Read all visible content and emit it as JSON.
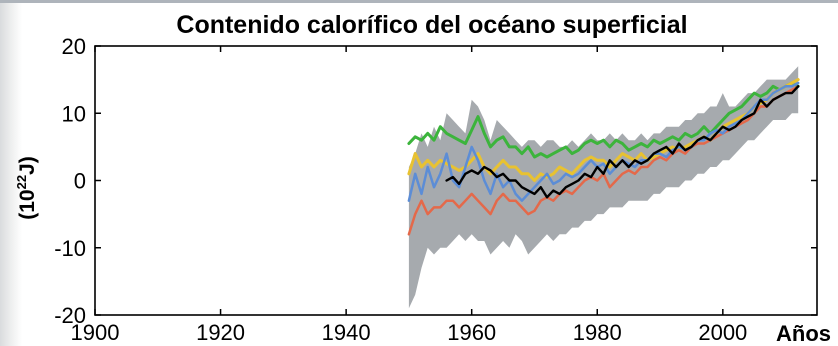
{
  "chart_data": {
    "type": "line",
    "title": "Contenido calorífico del océano superficial",
    "xlabel": "Años",
    "ylabel": "(10²²J)",
    "ylabel_base": "(10",
    "ylabel_exp": "22",
    "ylabel_unit": "J)",
    "xlim": [
      1900,
      2015
    ],
    "ylim": [
      -20,
      20
    ],
    "xticks": [
      1900,
      1920,
      1940,
      1960,
      1980,
      2000
    ],
    "yticks": [
      20,
      10,
      0,
      -10,
      -20
    ],
    "grid": false,
    "legend": "none",
    "uncertainty_band": {
      "color": "#a6aaae",
      "x": [
        1950,
        1951,
        1952,
        1953,
        1954,
        1955,
        1956,
        1957,
        1958,
        1959,
        1960,
        1961,
        1962,
        1963,
        1964,
        1965,
        1966,
        1967,
        1968,
        1969,
        1970,
        1971,
        1972,
        1973,
        1974,
        1975,
        1976,
        1977,
        1978,
        1979,
        1980,
        1981,
        1982,
        1983,
        1984,
        1985,
        1986,
        1987,
        1988,
        1989,
        1990,
        1991,
        1992,
        1993,
        1994,
        1995,
        1996,
        1997,
        1998,
        1999,
        2000,
        2001,
        2002,
        2003,
        2004,
        2005,
        2006,
        2007,
        2008,
        2009,
        2010,
        2011,
        2012
      ],
      "upper": [
        2,
        4,
        7,
        5,
        8,
        6,
        10,
        9,
        8,
        7,
        12,
        11,
        9,
        6,
        9,
        8,
        7,
        6,
        5,
        6,
        6,
        5,
        6,
        6,
        5,
        5,
        6,
        5,
        6,
        7,
        6,
        6,
        7,
        6,
        7,
        6,
        6,
        7,
        6,
        7,
        7,
        8,
        8,
        8,
        9,
        9,
        10,
        10,
        11,
        11,
        13,
        11,
        11,
        12,
        13,
        13,
        14,
        15,
        15,
        15,
        15,
        16,
        17
      ],
      "lower": [
        -19,
        -17,
        -13,
        -10,
        -11,
        -10,
        -10,
        -9,
        -8,
        -9,
        -8,
        -9,
        -9,
        -11,
        -10,
        -9,
        -10,
        -8,
        -9,
        -11,
        -10,
        -9,
        -8,
        -9,
        -8,
        -8,
        -7,
        -7,
        -6,
        -6,
        -5,
        -5,
        -4,
        -4,
        -4,
        -3,
        -3,
        -3,
        -3,
        -2,
        -2,
        -1,
        -1,
        -1,
        0,
        0,
        1,
        1,
        2,
        2,
        3,
        3,
        4,
        5,
        6,
        6,
        7,
        8,
        9,
        9,
        9,
        10,
        10
      ]
    },
    "series": [
      {
        "color": "#3cb43c",
        "x": [
          1950,
          1951,
          1952,
          1953,
          1954,
          1955,
          1956,
          1957,
          1958,
          1959,
          1960,
          1961,
          1962,
          1963,
          1964,
          1965,
          1966,
          1967,
          1968,
          1969,
          1970,
          1971,
          1972,
          1973,
          1974,
          1975,
          1976,
          1977,
          1978,
          1979,
          1980,
          1981,
          1982,
          1983,
          1984,
          1985,
          1986,
          1987,
          1988,
          1989,
          1990,
          1991,
          1992,
          1993,
          1994,
          1995,
          1996,
          1997,
          1998,
          1999,
          2000,
          2001,
          2002,
          2003,
          2004,
          2005,
          2006,
          2007,
          2008,
          2009,
          2010,
          2011,
          2012
        ],
        "values": [
          5.5,
          6.5,
          6,
          7,
          6,
          8,
          7,
          6.5,
          6,
          5.5,
          7.5,
          9.5,
          7,
          5,
          6,
          6.5,
          5,
          5,
          4,
          5,
          3.5,
          4,
          3.5,
          4,
          4.5,
          5,
          4,
          4.5,
          5.5,
          6,
          5.5,
          6,
          5,
          6,
          5.5,
          4.5,
          5,
          5.5,
          5,
          6,
          5.5,
          6,
          6.5,
          6,
          7,
          6.5,
          7,
          8,
          7,
          8,
          9,
          10,
          10.5,
          11,
          12,
          13,
          12.5,
          13,
          14,
          13.5,
          14,
          14.5,
          14
        ]
      },
      {
        "color": "#e8c231",
        "x": [
          1950,
          1951,
          1952,
          1953,
          1954,
          1955,
          1956,
          1957,
          1958,
          1959,
          1960,
          1961,
          1962,
          1963,
          1964,
          1965,
          1966,
          1967,
          1968,
          1969,
          1970,
          1971,
          1972,
          1973,
          1974,
          1975,
          1976,
          1977,
          1978,
          1979,
          1980,
          1981,
          1982,
          1983,
          1984,
          1985,
          1986,
          1987,
          1988,
          1989,
          1990,
          1991,
          1992,
          1993,
          1994,
          1995,
          1996,
          1997,
          1998,
          1999,
          2000,
          2001,
          2002,
          2003,
          2004,
          2005,
          2006,
          2007,
          2008,
          2009,
          2010,
          2011,
          2012
        ],
        "values": [
          1,
          4,
          2,
          3,
          2,
          3,
          2.5,
          2,
          1.5,
          2,
          3,
          4,
          2,
          1,
          2,
          3,
          2,
          2,
          1,
          1,
          0,
          1,
          0.5,
          1,
          2,
          1.5,
          1,
          2,
          3,
          3.5,
          3,
          3,
          2,
          3,
          4,
          3.5,
          3,
          4,
          3,
          3.5,
          4,
          4.5,
          5,
          4.5,
          5,
          5.5,
          6,
          6.5,
          6,
          7,
          8,
          8.5,
          9,
          9.5,
          10,
          11,
          11.5,
          12,
          13,
          13.5,
          14,
          14.5,
          15
        ]
      },
      {
        "color": "#e4694a",
        "x": [
          1950,
          1951,
          1952,
          1953,
          1954,
          1955,
          1956,
          1957,
          1958,
          1959,
          1960,
          1961,
          1962,
          1963,
          1964,
          1965,
          1966,
          1967,
          1968,
          1969,
          1970,
          1971,
          1972,
          1973,
          1974,
          1975,
          1976,
          1977,
          1978,
          1979,
          1980,
          1981,
          1982,
          1983,
          1984,
          1985,
          1986,
          1987,
          1988,
          1989,
          1990,
          1991,
          1992,
          1993,
          1994,
          1995,
          1996,
          1997,
          1998,
          1999,
          2000,
          2001,
          2002,
          2003,
          2004,
          2005,
          2006,
          2007,
          2008,
          2009,
          2010,
          2011,
          2012
        ],
        "values": [
          -8,
          -5,
          -3,
          -5,
          -4,
          -4,
          -3,
          -3,
          -4,
          -3,
          -2,
          -3,
          -4,
          -5,
          -3,
          -2,
          -3,
          -3,
          -4,
          -5,
          -4.5,
          -3,
          -2.5,
          -3,
          -2,
          -1.5,
          -2,
          -1,
          0,
          0.5,
          0,
          1,
          -1,
          0,
          1,
          1.5,
          1,
          2,
          2,
          3,
          3.5,
          3,
          4,
          4.5,
          4,
          5,
          5.5,
          5.5,
          6,
          6.5,
          7,
          7.5,
          8,
          8.5,
          9,
          10,
          11,
          11,
          12,
          12.5,
          13,
          13.5,
          14
        ]
      },
      {
        "color": "#5c8dd6",
        "x": [
          1950,
          1951,
          1952,
          1953,
          1954,
          1955,
          1956,
          1957,
          1958,
          1959,
          1960,
          1961,
          1962,
          1963,
          1964,
          1965,
          1966,
          1967,
          1968,
          1969,
          1970,
          1971,
          1972,
          1973,
          1974,
          1975,
          1976,
          1977,
          1978,
          1979,
          1980,
          1981,
          1982,
          1983,
          1984,
          1985,
          1986,
          1987,
          1988,
          1989,
          1990,
          1991,
          1992,
          1993,
          1994,
          1995,
          1996,
          1997,
          1998,
          1999,
          2000,
          2001,
          2002,
          2003,
          2004,
          2005,
          2006,
          2007,
          2008,
          2009,
          2010,
          2011,
          2012
        ],
        "values": [
          -3,
          1,
          -2,
          2,
          -1,
          1,
          4,
          0,
          -1,
          2,
          5,
          3,
          0,
          -2,
          1,
          -1,
          0,
          -2,
          -3,
          -2,
          -1,
          0,
          1,
          -0.5,
          0,
          1,
          0.5,
          1,
          2,
          3,
          2,
          2.5,
          1,
          2,
          3,
          2.5,
          2,
          3,
          3,
          4,
          4,
          3.5,
          4.5,
          5,
          4.5,
          5,
          6,
          6,
          7,
          7.5,
          7,
          8,
          8.5,
          9,
          10,
          11,
          12,
          12,
          13,
          13.5,
          14,
          14,
          14.5
        ]
      },
      {
        "color": "#000000",
        "x": [
          1956,
          1957,
          1958,
          1959,
          1960,
          1961,
          1962,
          1963,
          1964,
          1965,
          1966,
          1967,
          1968,
          1969,
          1970,
          1971,
          1972,
          1973,
          1974,
          1975,
          1976,
          1977,
          1978,
          1979,
          1980,
          1981,
          1982,
          1983,
          1984,
          1985,
          1986,
          1987,
          1988,
          1989,
          1990,
          1991,
          1992,
          1993,
          1994,
          1995,
          1996,
          1997,
          1998,
          1999,
          2000,
          2001,
          2002,
          2003,
          2004,
          2005,
          2006,
          2007,
          2008,
          2009,
          2010,
          2011,
          2012
        ],
        "values": [
          0,
          0.5,
          -0.5,
          1,
          1.5,
          1,
          2,
          1.5,
          0.5,
          1,
          0,
          0,
          -1,
          -1.5,
          -2,
          -1,
          -2.5,
          -1.5,
          -2,
          -1,
          -0.5,
          0,
          1,
          0.5,
          2,
          1,
          3,
          2,
          3,
          2,
          3,
          2.5,
          3,
          4,
          4.5,
          5,
          4,
          5.5,
          4.5,
          5,
          6,
          6.5,
          6,
          7,
          8,
          7.5,
          8,
          9,
          9.5,
          10,
          12,
          11,
          12,
          12.5,
          13,
          13,
          14
        ]
      }
    ]
  }
}
